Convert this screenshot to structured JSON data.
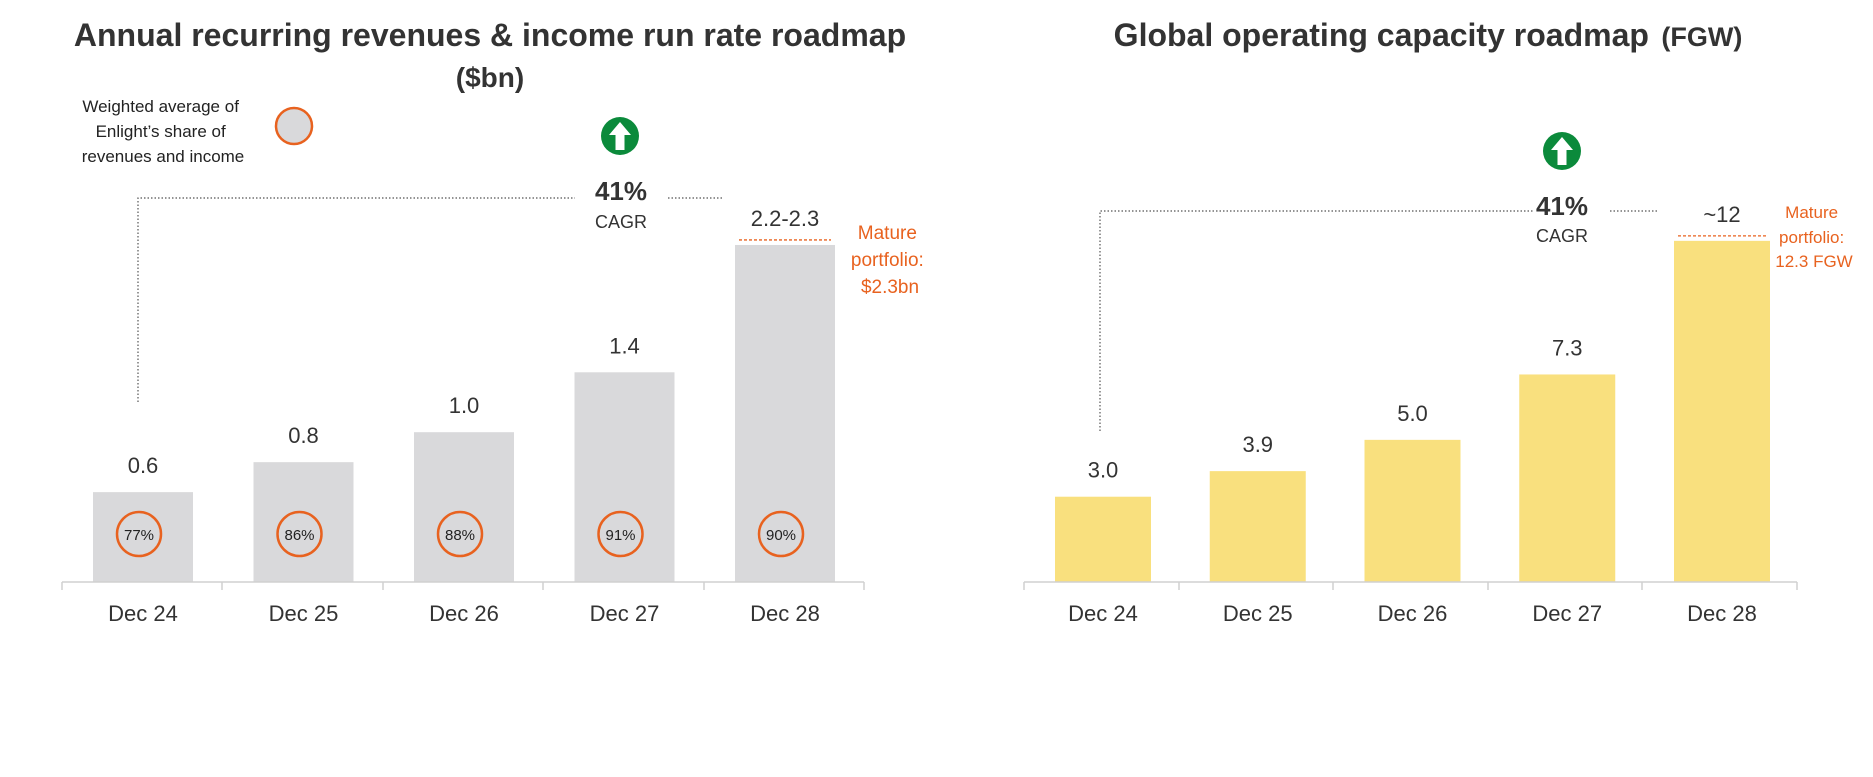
{
  "chart_data": [
    {
      "type": "bar",
      "title": "Annual recurring revenues & income run rate roadmap",
      "title_unit": "($bn)",
      "categories": [
        "Dec 24",
        "Dec 25",
        "Dec 26",
        "Dec 27",
        "Dec 28"
      ],
      "values": [
        0.6,
        0.8,
        1.0,
        1.4,
        2.25
      ],
      "value_labels": [
        "0.6",
        "0.8",
        "1.0",
        "1.4",
        "2.2-2.3"
      ],
      "share_labels": [
        "77%",
        "86%",
        "88%",
        "91%",
        "90%"
      ],
      "legend_text": "Weighted average of Enlight’s share of revenues and income",
      "cagr_value": "41%",
      "cagr_label": "CAGR",
      "mature_note": [
        "Mature",
        "portfolio:",
        "$2.3bn"
      ],
      "ylim": [
        0,
        2.45
      ],
      "colors": {
        "bar": "#d9d9db",
        "circle": "#e8621f",
        "note": "#e8621f",
        "arrow": "#0b8a3b"
      }
    },
    {
      "type": "bar",
      "title": "Global operating capacity roadmap",
      "title_unit": "(FGW)",
      "categories": [
        "Dec 24",
        "Dec 25",
        "Dec 26",
        "Dec 27",
        "Dec 28"
      ],
      "values": [
        3.0,
        3.9,
        5.0,
        7.3,
        12
      ],
      "value_labels": [
        "3.0",
        "3.9",
        "5.0",
        "7.3",
        "~12"
      ],
      "cagr_value": "41%",
      "cagr_label": "CAGR",
      "mature_note": [
        "Mature",
        "portfolio:",
        "12.3 FGW"
      ],
      "ylim": [
        0,
        13.05
      ],
      "colors": {
        "bar": "#f9e07e",
        "note": "#e8621f",
        "arrow": "#0b8a3b"
      }
    }
  ]
}
